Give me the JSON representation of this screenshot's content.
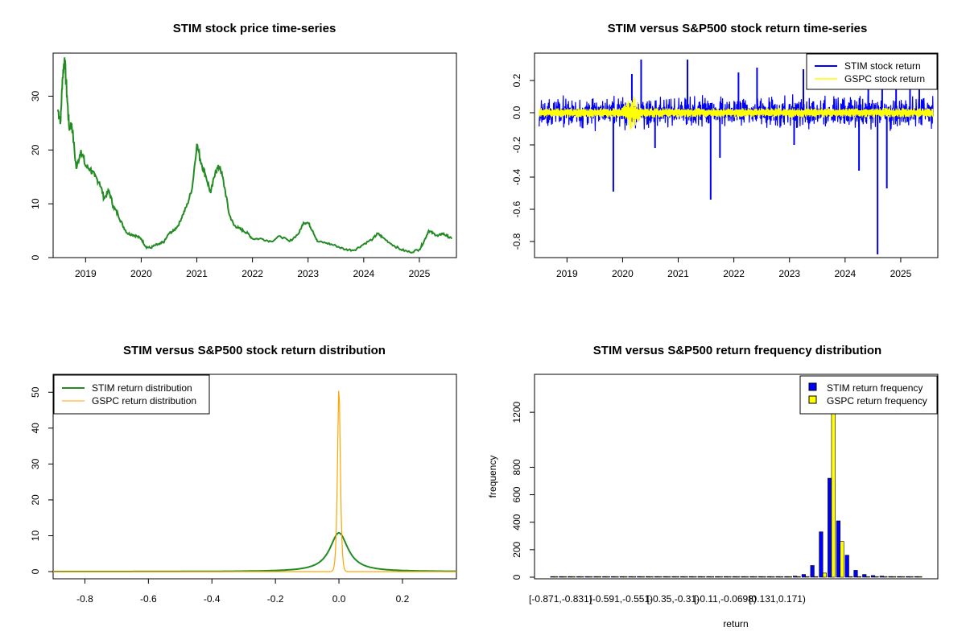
{
  "chart_data": [
    {
      "type": "line",
      "title": "STIM stock price time-series",
      "xlabel": "",
      "ylabel": "",
      "x_ticks": [
        "2019",
        "2020",
        "2021",
        "2022",
        "2023",
        "2024",
        "2025"
      ],
      "y_ticks": [
        "0",
        "10",
        "20",
        "30"
      ],
      "xlim": [
        "2018-06",
        "2025-09"
      ],
      "ylim": [
        0,
        38
      ],
      "colors": {
        "line": "#228B22"
      },
      "series": [
        {
          "x": [
            "2018-07",
            "2018-07-20",
            "2018-08",
            "2018-08-15",
            "2018-09",
            "2018-09-15",
            "2018-10",
            "2018-11",
            "2018-12",
            "2019-01",
            "2019-02",
            "2019-03",
            "2019-04",
            "2019-05",
            "2019-06",
            "2019-07",
            "2019-08",
            "2019-09",
            "2019-10",
            "2019-11",
            "2019-12",
            "2020-01",
            "2020-02",
            "2020-03",
            "2020-04",
            "2020-05",
            "2020-06",
            "2020-07",
            "2020-08",
            "2020-09",
            "2020-10",
            "2020-11",
            "2020-12",
            "2021-01",
            "2021-02",
            "2021-03",
            "2021-04",
            "2021-05",
            "2021-06",
            "2021-07",
            "2021-08",
            "2021-09",
            "2021-10",
            "2021-11",
            "2021-12",
            "2022-01",
            "2022-03",
            "2022-05",
            "2022-07",
            "2022-09",
            "2022-11",
            "2022-12",
            "2023-01",
            "2023-02",
            "2023-03",
            "2023-05",
            "2023-07",
            "2023-09",
            "2023-11",
            "2024-01",
            "2024-03",
            "2024-04",
            "2024-05",
            "2024-07",
            "2024-09",
            "2024-11",
            "2025-01",
            "2025-02",
            "2025-03",
            "2025-04",
            "2025-05",
            "2025-06",
            "2025-07",
            "2025-08"
          ],
          "y": [
            27.5,
            25.5,
            33.0,
            37.2,
            30.0,
            24.0,
            25.0,
            16.5,
            20.0,
            17.0,
            16.5,
            15.0,
            14.0,
            11.0,
            12.5,
            9.5,
            8.0,
            6.0,
            4.5,
            4.3,
            4.0,
            3.5,
            2.0,
            1.8,
            2.3,
            2.5,
            3.0,
            4.5,
            5.0,
            6.0,
            8.0,
            10.0,
            13.0,
            21.0,
            17.5,
            15.0,
            12.0,
            16.0,
            17.0,
            13.0,
            8.0,
            6.0,
            5.5,
            5.0,
            4.5,
            3.5,
            3.5,
            3.0,
            4.0,
            3.0,
            4.5,
            6.5,
            6.5,
            5.0,
            3.0,
            2.7,
            2.2,
            1.5,
            1.4,
            2.5,
            3.5,
            4.5,
            3.8,
            2.5,
            1.5,
            1.0,
            1.5,
            3.0,
            5.0,
            4.5,
            4.0,
            4.5,
            4.0,
            3.5
          ]
        }
      ]
    },
    {
      "type": "line",
      "title": "STIM versus S&P500 stock return time-series",
      "xlabel": "",
      "ylabel": "",
      "x_ticks": [
        "2019",
        "2020",
        "2021",
        "2022",
        "2023",
        "2024",
        "2025"
      ],
      "y_ticks": [
        "-0.8",
        "-0.6",
        "-0.4",
        "-0.2",
        "0.0",
        "0.2"
      ],
      "xlim": [
        "2018-06",
        "2025-09"
      ],
      "ylim": [
        -0.9,
        0.37
      ],
      "legend": "top-right",
      "colors": {
        "stim": "#0000FF",
        "gspc": "#FFFF00"
      },
      "series": [
        {
          "name": "STIM stock return",
          "spikes_x": [
            "2019-11",
            "2020-03",
            "2020-05",
            "2020-08",
            "2021-03",
            "2021-08",
            "2021-10",
            "2022-02",
            "2022-06",
            "2023-02",
            "2023-04",
            "2024-04",
            "2024-06",
            "2024-08",
            "2024-09",
            "2024-10",
            "2024-12",
            "2025-03",
            "2025-05"
          ],
          "spikes_y": [
            -0.49,
            0.24,
            0.33,
            -0.22,
            0.33,
            -0.54,
            -0.28,
            0.25,
            0.28,
            -0.2,
            0.27,
            -0.36,
            0.2,
            -0.88,
            0.23,
            -0.47,
            0.24,
            0.24,
            0.24
          ]
        },
        {
          "name": "GSPC stock return",
          "band": 0.03,
          "peak_x": "2020-03",
          "peak_y": 0.09
        }
      ]
    },
    {
      "type": "line",
      "title": "STIM versus S&P500 stock return distribution",
      "xlabel": "",
      "ylabel": "",
      "x_ticks": [
        "-0.8",
        "-0.6",
        "-0.4",
        "-0.2",
        "0.0",
        "0.2"
      ],
      "y_ticks": [
        "0",
        "10",
        "20",
        "30",
        "40",
        "50"
      ],
      "xlim": [
        -0.9,
        0.37
      ],
      "ylim": [
        -2,
        55
      ],
      "legend": "top-left",
      "colors": {
        "stim": "#228B22",
        "gspc": "#FFA500"
      },
      "series": [
        {
          "name": "STIM return distribution",
          "peak_x": 0.0,
          "peak_y": 10.8,
          "scale": 0.035
        },
        {
          "name": "GSPC return distribution",
          "peak_x": 0.0,
          "peak_y": 51.5,
          "scale": 0.0065
        }
      ]
    },
    {
      "type": "bar",
      "title": "STIM versus S&P500 return frequency distribution",
      "xlabel": "return",
      "ylabel": "frequency",
      "tick_labels": [
        "[-0.871,-0.831)",
        "[-0.591,-0.551)",
        "[-0.35,-0.31)",
        "[-0.11,-0.0698)",
        "[0.131,0.171)"
      ],
      "y_ticks": [
        "0",
        "200",
        "400",
        "600",
        "800",
        "1200"
      ],
      "ylim": [
        0,
        1400
      ],
      "legend": "top-right",
      "colors": {
        "stim": "#0000FF",
        "gspc": "#FFFF00"
      },
      "series": [
        {
          "name": "STIM return frequency",
          "values": [
            1,
            0,
            0,
            0,
            0,
            0,
            0,
            0,
            0,
            0,
            0,
            0,
            0,
            0,
            0,
            1,
            0,
            0,
            0,
            0,
            1,
            0,
            0,
            1,
            0,
            2,
            0,
            4,
            8,
            20,
            85,
            330,
            720,
            410,
            160,
            50,
            20,
            12,
            8,
            5,
            3,
            2,
            1
          ]
        },
        {
          "name": "GSPC return frequency",
          "values": [
            0,
            0,
            0,
            0,
            0,
            0,
            0,
            0,
            0,
            0,
            0,
            0,
            0,
            0,
            0,
            0,
            0,
            0,
            0,
            0,
            0,
            0,
            0,
            0,
            0,
            0,
            0,
            0,
            0,
            0,
            0,
            30,
            1300,
            260,
            0,
            0,
            0,
            0,
            0,
            0,
            0,
            0,
            0
          ]
        }
      ]
    }
  ]
}
